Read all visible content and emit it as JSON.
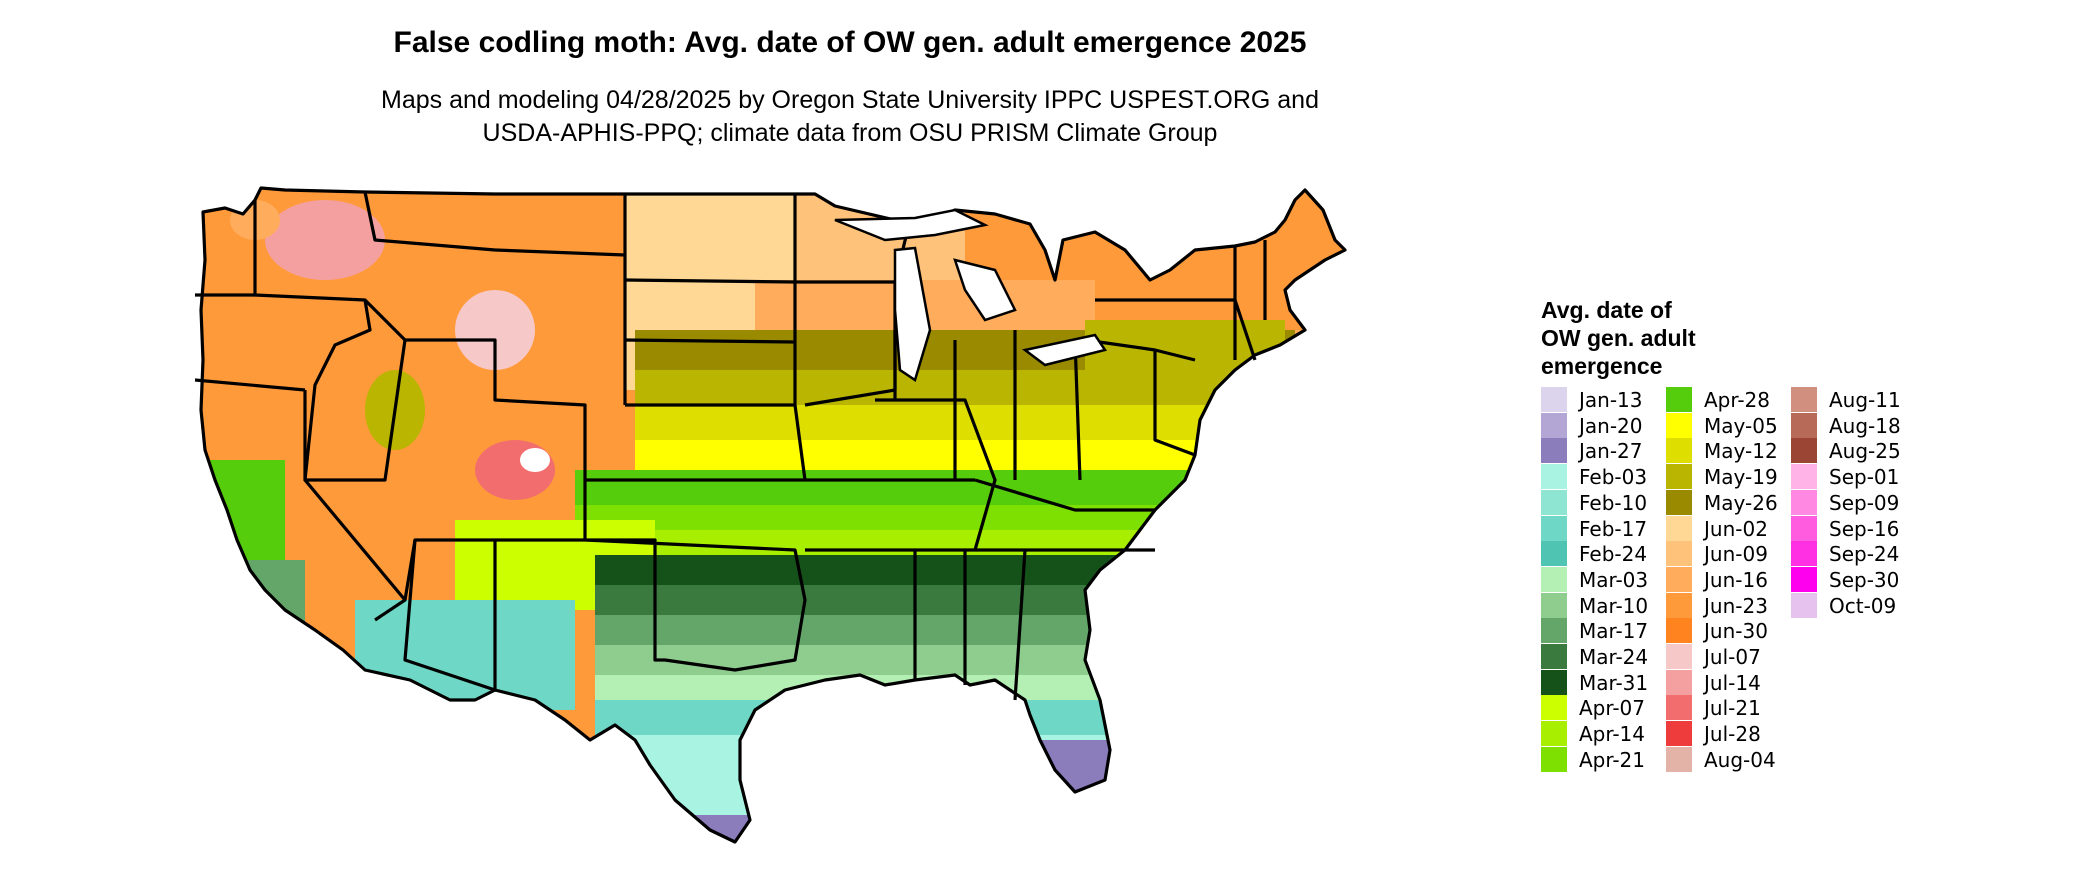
{
  "header": {
    "title": "False codling moth: Avg. date of OW gen. adult emergence 2025",
    "subtitle_line1": "Maps and modeling 04/28/2025 by Oregon State University IPPC USPEST.ORG and",
    "subtitle_line2": "USDA-APHIS-PPQ; climate data from OSU PRISM Climate Group"
  },
  "legend": {
    "title_line1": "Avg. date of",
    "title_line2": "OW gen. adult",
    "title_line3": "emergence",
    "columns": [
      [
        {
          "label": "Jan-13",
          "color": "#dcd4ec"
        },
        {
          "label": "Jan-20",
          "color": "#b3a6d4"
        },
        {
          "label": "Jan-27",
          "color": "#8b7cbc"
        },
        {
          "label": "Feb-03",
          "color": "#a9f3e2"
        },
        {
          "label": "Feb-10",
          "color": "#8ee5d2"
        },
        {
          "label": "Feb-17",
          "color": "#6fd7c6"
        },
        {
          "label": "Feb-24",
          "color": "#4fc4b3"
        },
        {
          "label": "Mar-03",
          "color": "#b4f0b4"
        },
        {
          "label": "Mar-10",
          "color": "#8fcd8f"
        },
        {
          "label": "Mar-17",
          "color": "#64a66a"
        },
        {
          "label": "Mar-24",
          "color": "#3a7a3e"
        },
        {
          "label": "Mar-31",
          "color": "#15521a"
        },
        {
          "label": "Apr-07",
          "color": "#ccff00"
        },
        {
          "label": "Apr-14",
          "color": "#a8ee00"
        },
        {
          "label": "Apr-21",
          "color": "#7ee000"
        }
      ],
      [
        {
          "label": "Apr-28",
          "color": "#55cc0c"
        },
        {
          "label": "May-05",
          "color": "#ffff00"
        },
        {
          "label": "May-12",
          "color": "#dede00"
        },
        {
          "label": "May-19",
          "color": "#b9b500"
        },
        {
          "label": "May-26",
          "color": "#9a8a00"
        },
        {
          "label": "Jun-02",
          "color": "#ffd895"
        },
        {
          "label": "Jun-09",
          "color": "#ffc27a"
        },
        {
          "label": "Jun-16",
          "color": "#ffac5c"
        },
        {
          "label": "Jun-23",
          "color": "#ff9a3a"
        },
        {
          "label": "Jun-30",
          "color": "#ff8420"
        },
        {
          "label": "Jul-07",
          "color": "#f6c8c8"
        },
        {
          "label": "Jul-14",
          "color": "#f4a0a0"
        },
        {
          "label": "Jul-21",
          "color": "#f26e6e"
        },
        {
          "label": "Jul-28",
          "color": "#ee3c3c"
        },
        {
          "label": "Aug-04",
          "color": "#e3b3a8"
        }
      ],
      [
        {
          "label": "Aug-11",
          "color": "#d18f80"
        },
        {
          "label": "Aug-18",
          "color": "#b86a58"
        },
        {
          "label": "Aug-25",
          "color": "#9b4634"
        },
        {
          "label": "Sep-01",
          "color": "#ffb3e6"
        },
        {
          "label": "Sep-09",
          "color": "#ff88e2"
        },
        {
          "label": "Sep-16",
          "color": "#ff5ce0"
        },
        {
          "label": "Sep-24",
          "color": "#ff30e4"
        },
        {
          "label": "Sep-30",
          "color": "#ff00ee"
        },
        {
          "label": "Oct-09",
          "color": "#e6c3ee"
        }
      ]
    ]
  }
}
